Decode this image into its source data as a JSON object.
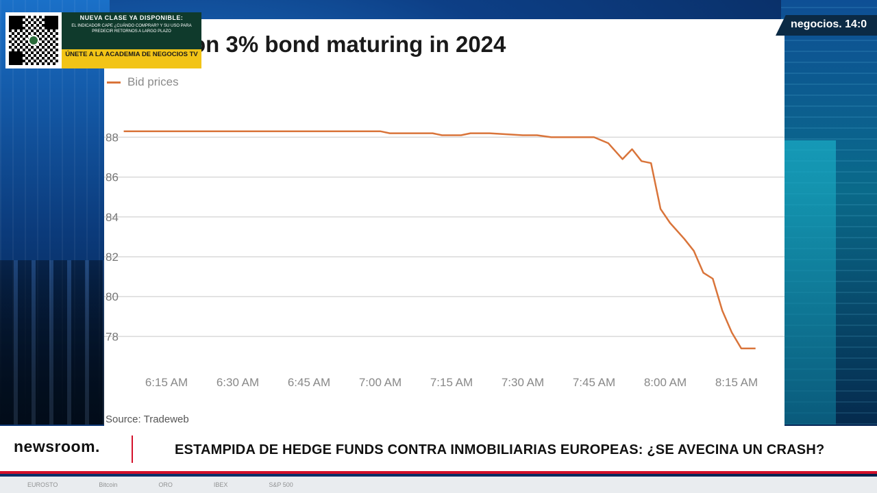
{
  "promo": {
    "heading": "NUEVA CLASE YA DISPONIBLE:",
    "body": "EL INDICADOR CAPE ¿CUÁNDO COMPRAR? Y SU USO PARA PREDECIR RETORNOS A LARGO PLAZO",
    "cta": "ÚNETE A LA ACADEMIA DE NEGOCIOS TV"
  },
  "brand": {
    "name": "negocios.",
    "time": "14:0"
  },
  "ticker": {
    "logo": "newsroom.",
    "headline": "ESTAMPIDA DE HEDGE FUNDS CONTRA INMOBILIARIAS EUROPEAS: ¿SE AVECINA UN CRASH?"
  },
  "markets": [
    "EUROSTO",
    "Bitcoin",
    "ORO",
    "IBEX",
    "S&P 500"
  ],
  "colors": {
    "line": "#d9743a",
    "grid": "#d9d9d9",
    "accent": "#d4102a"
  },
  "chart_data": {
    "type": "line",
    "title": "on 3% bond maturing in 2024",
    "source": "Source: Tradeweb",
    "series": [
      {
        "name": "Bid prices",
        "points": [
          [
            "6:06",
            88.3
          ],
          [
            "7:00",
            88.3
          ],
          [
            "7:02",
            88.2
          ],
          [
            "7:11",
            88.2
          ],
          [
            "7:13",
            88.1
          ],
          [
            "7:17",
            88.1
          ],
          [
            "7:19",
            88.2
          ],
          [
            "7:23",
            88.2
          ],
          [
            "7:30",
            88.1
          ],
          [
            "7:33",
            88.1
          ],
          [
            "7:36",
            88.0
          ],
          [
            "7:45",
            88.0
          ],
          [
            "7:48",
            87.7
          ],
          [
            "7:51",
            86.9
          ],
          [
            "7:53",
            87.4
          ],
          [
            "7:55",
            86.8
          ],
          [
            "7:57",
            86.7
          ],
          [
            "7:59",
            84.4
          ],
          [
            "8:01",
            83.7
          ],
          [
            "8:04",
            82.9
          ],
          [
            "8:06",
            82.3
          ],
          [
            "8:08",
            81.2
          ],
          [
            "8:10",
            80.9
          ],
          [
            "8:12",
            79.3
          ],
          [
            "8:14",
            78.2
          ],
          [
            "8:16",
            77.4
          ],
          [
            "8:19",
            77.4
          ]
        ]
      }
    ],
    "y_ticks": [
      78,
      80,
      82,
      84,
      86,
      88
    ],
    "x_ticks": [
      "6:15 AM",
      "6:30 AM",
      "6:45 AM",
      "7:00 AM",
      "7:15 AM",
      "7:30 AM",
      "7:45 AM",
      "8:00 AM",
      "8:15 AM"
    ],
    "xlim": [
      "6:00",
      "8:20"
    ],
    "ylim": [
      76.4,
      89.8
    ],
    "grid": "horizontal",
    "legend": "top-left"
  }
}
